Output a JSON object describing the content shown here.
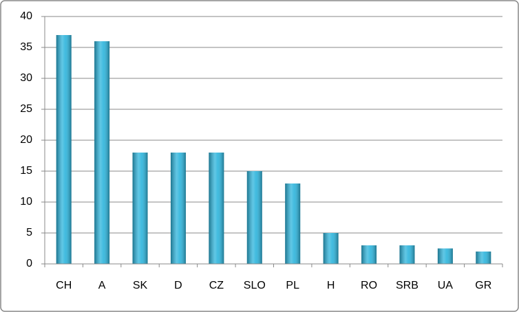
{
  "chart_data": {
    "type": "bar",
    "categories": [
      "CH",
      "A",
      "SK",
      "D",
      "CZ",
      "SLO",
      "PL",
      "H",
      "RO",
      "SRB",
      "UA",
      "GR"
    ],
    "values": [
      37,
      36,
      18,
      18,
      18,
      15,
      13,
      5,
      3,
      3,
      2.5,
      2
    ],
    "color": "#2cb4dc",
    "ylim": [
      0,
      40
    ],
    "yticks": [
      0,
      5,
      10,
      15,
      20,
      25,
      30,
      35,
      40
    ],
    "grid": true
  }
}
